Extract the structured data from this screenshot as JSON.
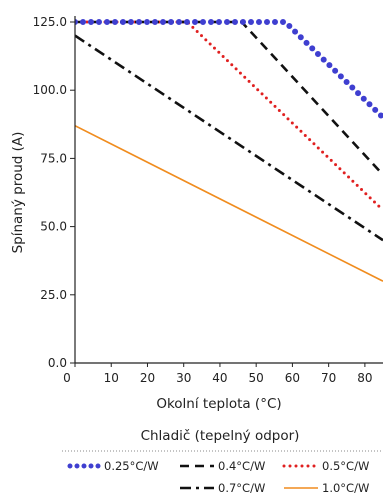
{
  "chart_data": {
    "type": "line",
    "xlabel": "Okolní teplota (°C)",
    "ylabel": "Spínaný proud (A)",
    "xlim": [
      0,
      85
    ],
    "ylim": [
      0,
      125
    ],
    "x_ticks": [
      0,
      10,
      20,
      30,
      40,
      50,
      60,
      70,
      80
    ],
    "y_ticks": [
      0,
      25,
      50,
      75,
      100,
      125
    ],
    "x_tick_labels": [
      "0",
      "10",
      "20",
      "30",
      "40",
      "50",
      "60",
      "70",
      "80"
    ],
    "y_tick_labels": [
      "0.0",
      "25.0",
      "50.0",
      "75.0",
      "100.0",
      "125.0"
    ],
    "grid": false,
    "legend_title": "Chladič (tepelný odpor)",
    "legend_placement": "bottom",
    "series": [
      {
        "name": "0.25°C/W",
        "color": "#3f3fd0",
        "style": "dots",
        "x": [
          0,
          58,
          85
        ],
        "y": [
          125,
          125,
          90
        ]
      },
      {
        "name": "0.4°C/W",
        "color": "#111111",
        "style": "dash",
        "x": [
          0,
          46,
          85
        ],
        "y": [
          125,
          125,
          69
        ]
      },
      {
        "name": "0.5°C/W",
        "color": "#e02020",
        "style": "dot",
        "x": [
          0,
          31,
          85
        ],
        "y": [
          125,
          125,
          56
        ]
      },
      {
        "name": "0.7°C/W",
        "color": "#111111",
        "style": "dashdot",
        "x": [
          0,
          85
        ],
        "y": [
          120,
          45
        ]
      },
      {
        "name": "1.0°C/W",
        "color": "#f08c1e",
        "style": "solid",
        "x": [
          0,
          85
        ],
        "y": [
          87,
          30
        ]
      }
    ]
  }
}
